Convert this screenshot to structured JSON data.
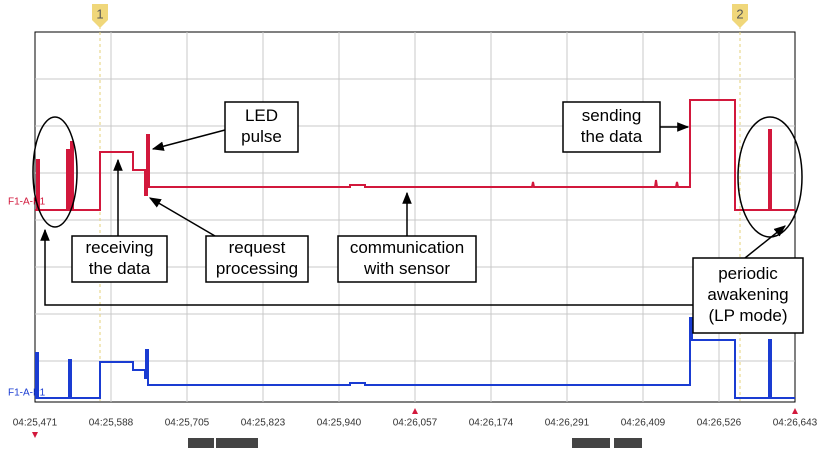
{
  "markers": [
    "1",
    "2"
  ],
  "channels": {
    "red": "F1-A-P1",
    "blue": "F1-A-P1"
  },
  "time_labels": [
    "04:25,471",
    "04:25,588",
    "04:25,705",
    "04:25,823",
    "04:25,940",
    "04:26,057",
    "04:26,174",
    "04:26,291",
    "04:26,409",
    "04:26,526",
    "04:26,643"
  ],
  "annotations": [
    {
      "lines": [
        "LED",
        "pulse"
      ]
    },
    {
      "lines": [
        "sending",
        "the data"
      ]
    },
    {
      "lines": [
        "receiving",
        "the data"
      ]
    },
    {
      "lines": [
        "request",
        "processing"
      ]
    },
    {
      "lines": [
        "communication",
        "with sensor"
      ]
    },
    {
      "lines": [
        "periodic",
        "awakening",
        "(LP mode)"
      ]
    }
  ]
}
